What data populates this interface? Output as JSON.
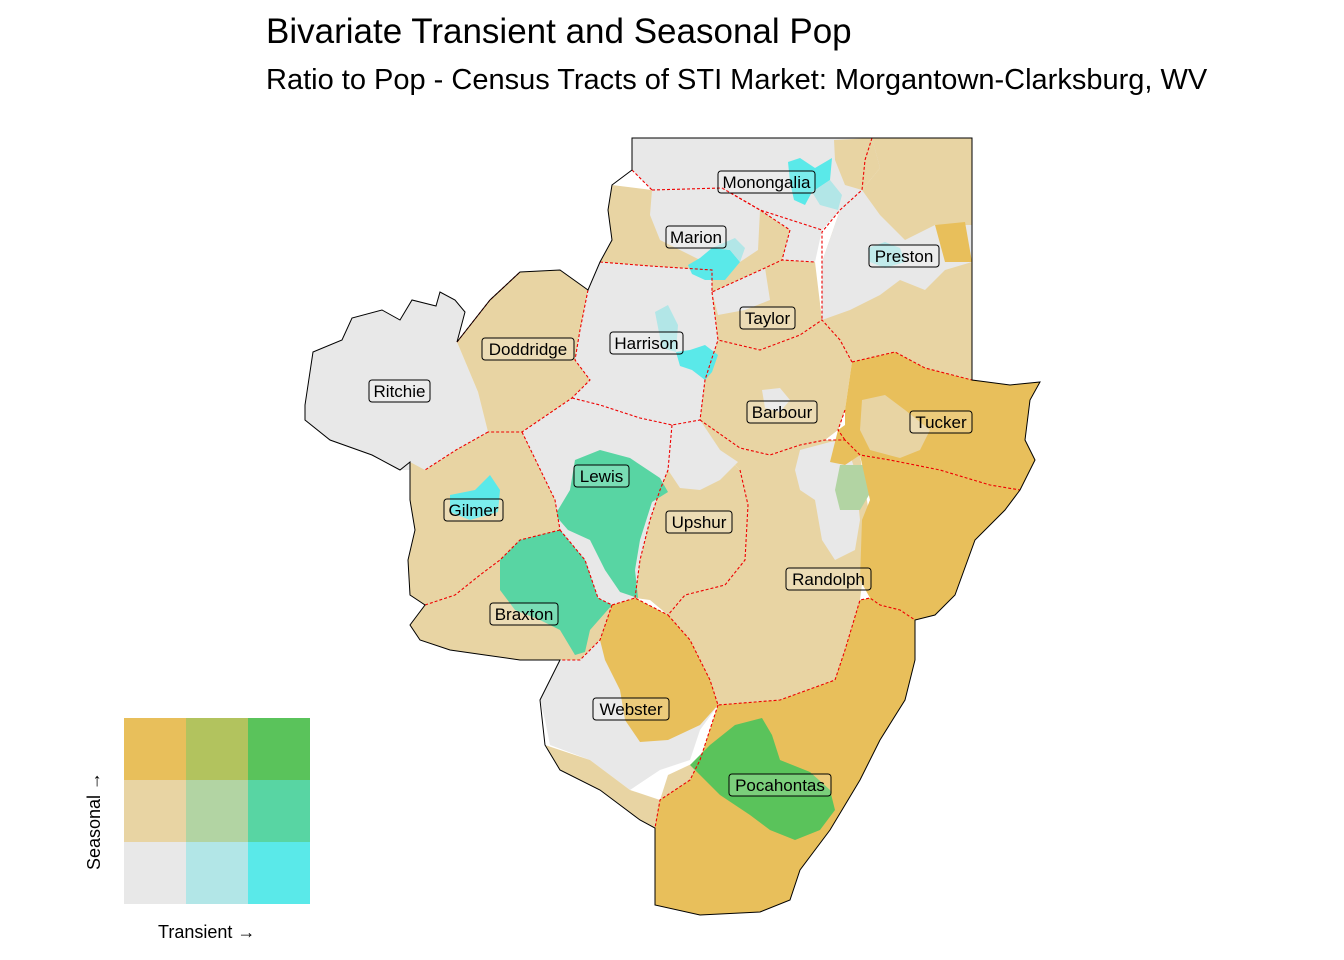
{
  "title": "Bivariate Transient and Seasonal Pop",
  "subtitle": "Ratio to Pop - Census Tracts of STI Market: Morgantown-Clarksburg, WV",
  "colors": {
    "low_low": "#e8e8e8",
    "mid_trans_low_seas": "#b2e6e7",
    "high_trans_low_seas": "#5ae9e9",
    "low_trans_mid_seas": "#e8d4a3",
    "mid_mid": "#b2d4a3",
    "high_trans_mid_seas": "#58d5a3",
    "low_trans_high_seas": "#e8bf5b",
    "mid_trans_high_seas": "#b2c35e",
    "high_high": "#5ac35b",
    "county_border": "#ee0000",
    "outline": "#000000"
  },
  "counties": [
    {
      "name": "Monongalia"
    },
    {
      "name": "Marion"
    },
    {
      "name": "Preston"
    },
    {
      "name": "Taylor"
    },
    {
      "name": "Doddridge"
    },
    {
      "name": "Harrison"
    },
    {
      "name": "Ritchie"
    },
    {
      "name": "Barbour"
    },
    {
      "name": "Tucker"
    },
    {
      "name": "Lewis"
    },
    {
      "name": "Gilmer"
    },
    {
      "name": "Upshur"
    },
    {
      "name": "Randolph"
    },
    {
      "name": "Braxton"
    },
    {
      "name": "Webster"
    },
    {
      "name": "Pocahontas"
    }
  ],
  "legend": {
    "x_label": "Transient →",
    "y_label": "Seasonal →",
    "levels": 3
  }
}
